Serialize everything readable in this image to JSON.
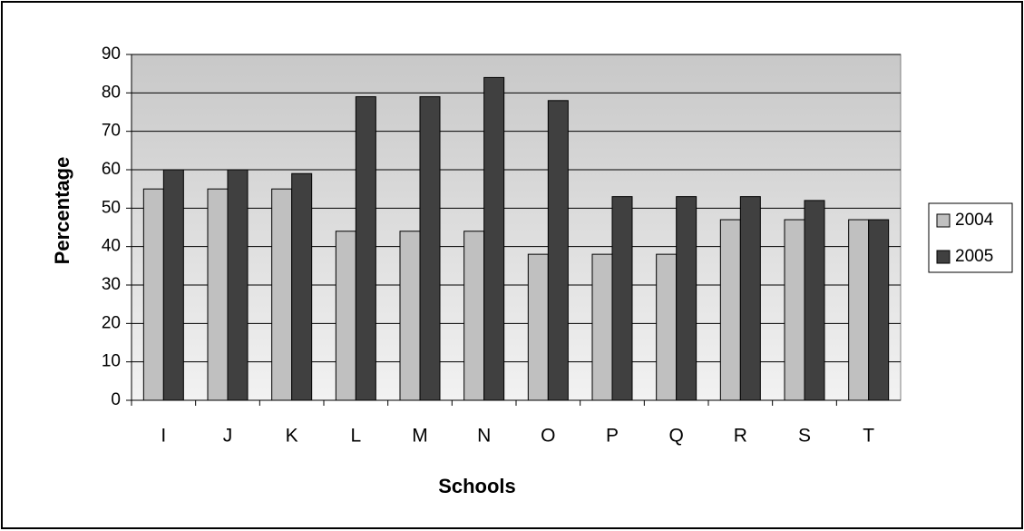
{
  "chart_data": {
    "type": "bar",
    "x_label": "Schools",
    "y_label": "Percentage",
    "categories": [
      "I",
      "J",
      "K",
      "L",
      "M",
      "N",
      "O",
      "P",
      "Q",
      "R",
      "S",
      "T"
    ],
    "series": [
      {
        "name": "2004",
        "color": "#c0c0c0",
        "values": [
          55,
          55,
          55,
          44,
          44,
          44,
          38,
          38,
          38,
          47,
          47,
          47
        ]
      },
      {
        "name": "2005",
        "color": "#404040",
        "values": [
          60,
          60,
          59,
          79,
          79,
          84,
          78,
          53,
          53,
          53,
          52,
          47
        ]
      }
    ],
    "ylim": [
      0,
      90
    ],
    "yticks": [
      0,
      10,
      20,
      30,
      40,
      50,
      60,
      70,
      80,
      90
    ],
    "grid": true,
    "legend": "right"
  }
}
